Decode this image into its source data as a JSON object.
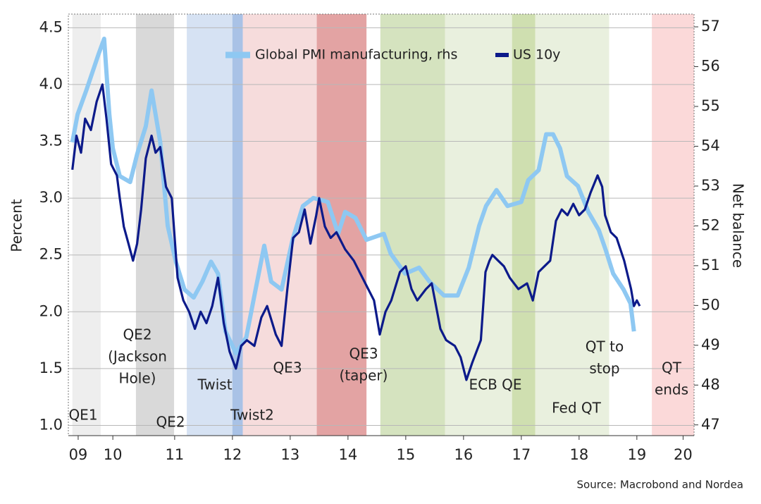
{
  "chart_data": {
    "type": "line",
    "y_label": "Percent",
    "y2_label": "Net balance",
    "source": "Source: Macrobond and Nordea",
    "xlim": [
      2009.66,
      2020.49
    ],
    "xticks": [
      {
        "value": 2009.83,
        "label": "09"
      },
      {
        "value": 2010.43,
        "label": "10"
      },
      {
        "value": 2011.5,
        "label": "11"
      },
      {
        "value": 2012.5,
        "label": "12"
      },
      {
        "value": 2013.5,
        "label": "13"
      },
      {
        "value": 2014.5,
        "label": "14"
      },
      {
        "value": 2015.5,
        "label": "15"
      },
      {
        "value": 2016.5,
        "label": "16"
      },
      {
        "value": 2017.5,
        "label": "17"
      },
      {
        "value": 2018.5,
        "label": "18"
      },
      {
        "value": 2019.5,
        "label": "19"
      },
      {
        "value": 2020.3,
        "label": "20"
      }
    ],
    "ylim": [
      0.91,
      4.62
    ],
    "yticks": [
      {
        "value": 1,
        "label": "1.0"
      },
      1.5,
      {
        "value": 2,
        "label": "2.0"
      },
      2.5,
      {
        "value": 3,
        "label": "3.0"
      },
      3.5,
      {
        "value": 4,
        "label": "4.0"
      },
      4.5
    ],
    "y2lim": [
      46.73,
      57.32
    ],
    "y2ticks": [
      47,
      48,
      49,
      50,
      51,
      52,
      53,
      54,
      55,
      56,
      57
    ],
    "grid": true,
    "regions": [
      {
        "x0": 2009.73,
        "x1": 2010.22,
        "color": "#eeeeee"
      },
      {
        "x0": 2010.83,
        "x1": 2011.49,
        "color": "#d9d9d9"
      },
      {
        "x0": 2011.71,
        "x1": 2012.68,
        "color": "#d6e2f3"
      },
      {
        "x0": 2012.5,
        "x1": 2012.68,
        "color": "#a9c2e6"
      },
      {
        "x0": 2012.68,
        "x1": 2014.82,
        "color": "#f6dcdc"
      },
      {
        "x0": 2013.96,
        "x1": 2014.82,
        "color": "#e3a3a3"
      },
      {
        "x0": 2015.06,
        "x1": 2016.18,
        "color": "#d5e3bf"
      },
      {
        "x0": 2016.18,
        "x1": 2019.02,
        "color": "#e9f0de"
      },
      {
        "x0": 2017.34,
        "x1": 2017.74,
        "color": "#cfdfb0"
      },
      {
        "x0": 2019.76,
        "x1": 2020.49,
        "color": "#fbd9d9"
      }
    ],
    "annotations": [
      {
        "lines": [
          "QE1"
        ]
      },
      {
        "lines": [
          "QE2",
          "(Jackson",
          "Hole)"
        ]
      },
      {
        "lines": [
          "QE2"
        ]
      },
      {
        "lines": [
          "Twist"
        ]
      },
      {
        "lines": [
          "Twist2"
        ]
      },
      {
        "lines": [
          "QE3"
        ]
      },
      {
        "lines": [
          "QE3",
          "(taper)"
        ]
      },
      {
        "lines": [
          "ECB QE"
        ]
      },
      {
        "lines": [
          "Fed QT"
        ]
      },
      {
        "lines": [
          "QT to",
          "stop"
        ]
      },
      {
        "lines": [
          "QT",
          "ends"
        ]
      }
    ],
    "series": [
      {
        "name": "Global PMI manufacturing, rhs",
        "color": "#8ec8f2",
        "axis": "y2",
        "x": [
          2009.73,
          2009.82,
          2009.97,
          2010.18,
          2010.28,
          2010.37,
          2010.43,
          2010.55,
          2010.73,
          2010.85,
          2011.0,
          2011.1,
          2011.25,
          2011.38,
          2011.52,
          2011.67,
          2011.83,
          2011.98,
          2012.13,
          2012.25,
          2012.38,
          2012.56,
          2012.74,
          2012.9,
          2013.05,
          2013.17,
          2013.35,
          2013.54,
          2013.72,
          2013.9,
          2014.15,
          2014.33,
          2014.45,
          2014.63,
          2014.82,
          2015.12,
          2015.24,
          2015.49,
          2015.73,
          2015.91,
          2016.16,
          2016.4,
          2016.59,
          2016.77,
          2016.89,
          2017.07,
          2017.26,
          2017.5,
          2017.62,
          2017.8,
          2017.93,
          2018.05,
          2018.17,
          2018.29,
          2018.48,
          2018.66,
          2018.84,
          2018.96,
          2019.09,
          2019.27,
          2019.39,
          2019.45
        ],
        "values": [
          54.1,
          54.8,
          55.4,
          56.3,
          56.7,
          54.8,
          53.95,
          53.25,
          53.1,
          53.8,
          54.5,
          55.4,
          54.1,
          52.0,
          51.1,
          50.4,
          50.2,
          50.6,
          51.1,
          50.8,
          49.35,
          48.8,
          49.2,
          50.4,
          51.5,
          50.6,
          50.4,
          51.65,
          52.5,
          52.7,
          52.6,
          51.8,
          52.35,
          52.2,
          51.65,
          51.8,
          51.3,
          50.8,
          50.95,
          50.6,
          50.25,
          50.25,
          50.95,
          52.0,
          52.5,
          52.9,
          52.5,
          52.6,
          53.15,
          53.4,
          54.3,
          54.3,
          53.95,
          53.25,
          53.0,
          52.35,
          51.9,
          51.4,
          50.8,
          50.4,
          50.05,
          49.35
        ]
      },
      {
        "name": "US 10y",
        "color": "#0c1a8a",
        "x": [
          2009.73,
          2009.8,
          2009.88,
          2009.95,
          2010.05,
          2010.15,
          2010.25,
          2010.32,
          2010.4,
          2010.5,
          2010.55,
          2010.62,
          2010.7,
          2010.78,
          2010.85,
          2010.92,
          2011.0,
          2011.1,
          2011.17,
          2011.25,
          2011.35,
          2011.45,
          2011.55,
          2011.65,
          2011.75,
          2011.85,
          2011.95,
          2012.05,
          2012.15,
          2012.25,
          2012.35,
          2012.45,
          2012.56,
          2012.65,
          2012.75,
          2012.88,
          2013.0,
          2013.1,
          2013.25,
          2013.35,
          2013.45,
          2013.55,
          2013.65,
          2013.75,
          2013.85,
          2013.95,
          2014.0,
          2014.1,
          2014.2,
          2014.3,
          2014.45,
          2014.6,
          2014.75,
          2014.85,
          2014.95,
          2015.05,
          2015.15,
          2015.25,
          2015.4,
          2015.5,
          2015.6,
          2015.7,
          2015.85,
          2015.95,
          2016.1,
          2016.2,
          2016.35,
          2016.45,
          2016.55,
          2016.65,
          2016.8,
          2016.88,
          2016.95,
          2017.0,
          2017.1,
          2017.2,
          2017.3,
          2017.45,
          2017.6,
          2017.7,
          2017.8,
          2017.9,
          2018.0,
          2018.1,
          2018.2,
          2018.3,
          2018.4,
          2018.5,
          2018.6,
          2018.7,
          2018.82,
          2018.9,
          2018.95,
          2019.05,
          2019.15,
          2019.28,
          2019.4,
          2019.45,
          2019.5,
          2019.55
        ],
        "values": [
          3.25,
          3.55,
          3.4,
          3.7,
          3.6,
          3.85,
          4.0,
          3.7,
          3.3,
          3.2,
          3.0,
          2.75,
          2.6,
          2.45,
          2.6,
          2.9,
          3.35,
          3.55,
          3.4,
          3.45,
          3.1,
          3.0,
          2.3,
          2.1,
          2.0,
          1.85,
          2.0,
          1.9,
          2.05,
          2.3,
          1.9,
          1.65,
          1.5,
          1.7,
          1.75,
          1.7,
          1.95,
          2.05,
          1.8,
          1.7,
          2.2,
          2.65,
          2.7,
          2.9,
          2.6,
          2.85,
          3.0,
          2.75,
          2.65,
          2.7,
          2.55,
          2.45,
          2.3,
          2.2,
          2.1,
          1.8,
          2.0,
          2.1,
          2.35,
          2.4,
          2.2,
          2.1,
          2.2,
          2.25,
          1.85,
          1.75,
          1.7,
          1.6,
          1.4,
          1.55,
          1.75,
          2.35,
          2.45,
          2.5,
          2.45,
          2.4,
          2.3,
          2.2,
          2.25,
          2.1,
          2.35,
          2.4,
          2.45,
          2.8,
          2.9,
          2.85,
          2.95,
          2.85,
          2.9,
          3.05,
          3.2,
          3.1,
          2.85,
          2.7,
          2.65,
          2.45,
          2.2,
          2.05,
          2.1,
          2.05
        ]
      }
    ]
  }
}
